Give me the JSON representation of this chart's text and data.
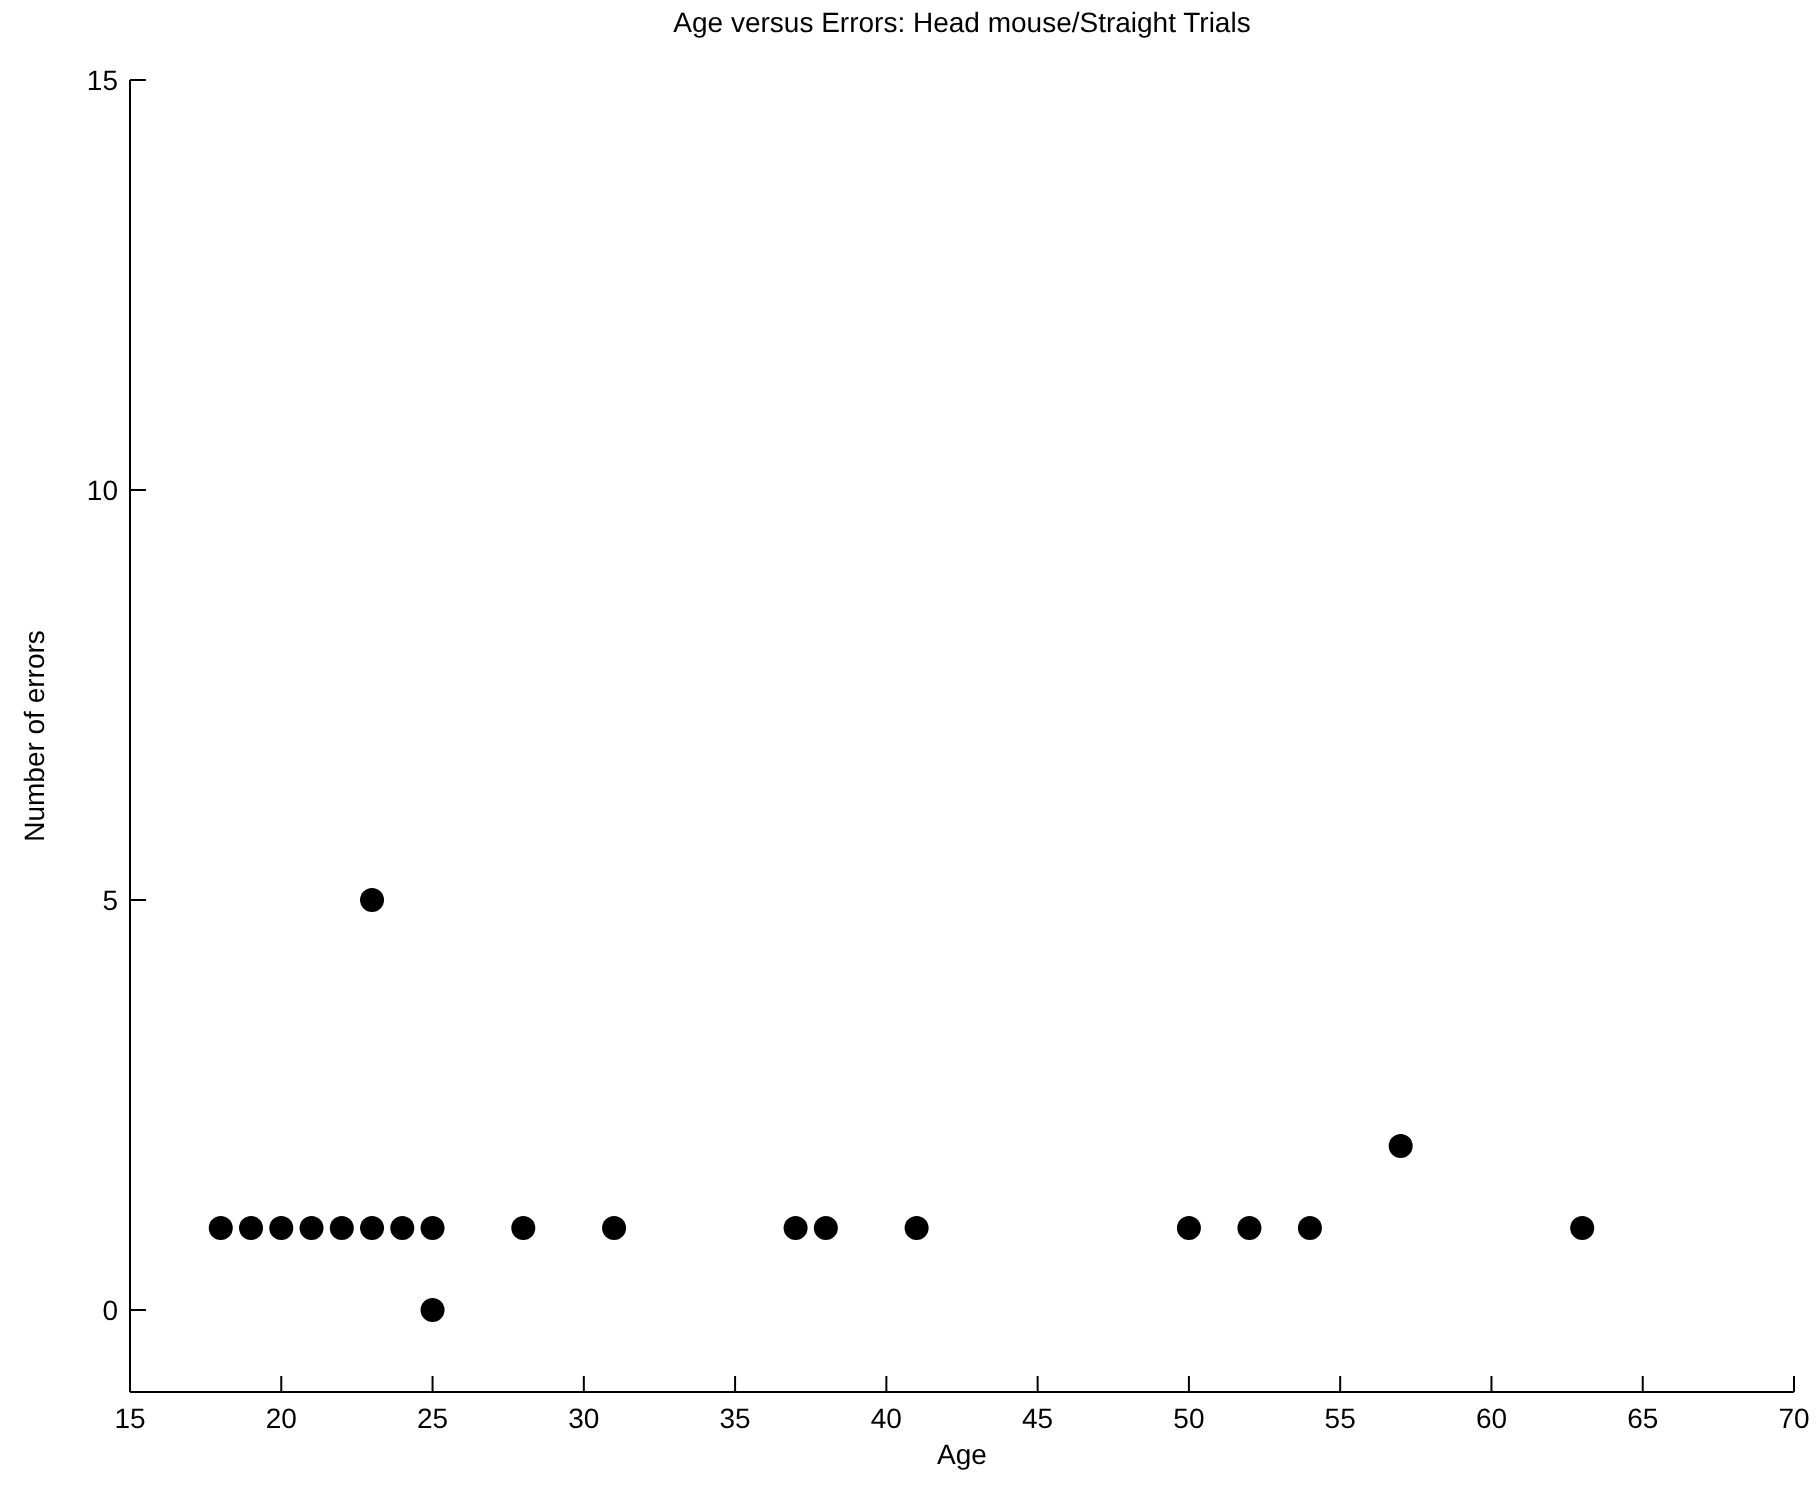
{
  "chart_data": {
    "type": "scatter",
    "title": "Age versus Errors: Head mouse/Straight Trials",
    "xlabel": "Age",
    "ylabel": "Number of errors",
    "x": [
      18,
      19,
      20,
      21,
      22,
      23,
      24,
      25,
      23,
      25,
      28,
      31,
      37,
      38,
      41,
      50,
      52,
      54,
      57,
      63
    ],
    "values": [
      1,
      1,
      1,
      1,
      1,
      1,
      1,
      1,
      5,
      0,
      1,
      1,
      1,
      1,
      1,
      1,
      1,
      1,
      2,
      1
    ],
    "color": "#000000",
    "xlim": [
      15,
      70
    ],
    "xticks": [
      15,
      20,
      25,
      30,
      35,
      40,
      45,
      50,
      55,
      60,
      65,
      70
    ],
    "ylim": [
      -1,
      15
    ],
    "yticks": [
      0,
      5,
      10,
      15
    ],
    "marker": "circle",
    "grid": false
  }
}
